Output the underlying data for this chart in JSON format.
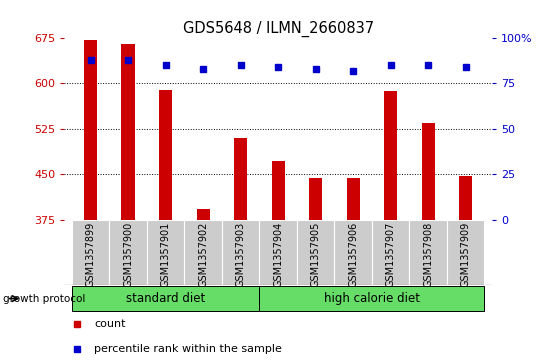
{
  "title": "GDS5648 / ILMN_2660837",
  "samples": [
    "GSM1357899",
    "GSM1357900",
    "GSM1357901",
    "GSM1357902",
    "GSM1357903",
    "GSM1357904",
    "GSM1357905",
    "GSM1357906",
    "GSM1357907",
    "GSM1357908",
    "GSM1357909"
  ],
  "bar_values": [
    672,
    665,
    590,
    393,
    510,
    472,
    443,
    443,
    587,
    535,
    447
  ],
  "percentile_values": [
    88,
    88,
    85,
    83,
    85,
    84,
    83,
    82,
    85,
    85,
    84
  ],
  "bar_color": "#cc0000",
  "percentile_color": "#0000cc",
  "ymin": 375,
  "ymax": 675,
  "y_ticks": [
    375,
    450,
    525,
    600,
    675
  ],
  "y_right_ticks": [
    0,
    25,
    50,
    75,
    100
  ],
  "y_right_labels": [
    "0",
    "25",
    "50",
    "75",
    "100%"
  ],
  "grid_values": [
    600,
    525,
    450
  ],
  "standard_diet_indices": [
    0,
    1,
    2,
    3,
    4
  ],
  "high_calorie_indices": [
    5,
    6,
    7,
    8,
    9,
    10
  ],
  "group_label_0": "standard diet",
  "group_label_1": "high calorie diet",
  "group_color": "#66dd66",
  "xlabel_area_color": "#cccccc",
  "protocol_label": "growth protocol",
  "legend_count_label": "count",
  "legend_pct_label": "percentile rank within the sample",
  "bar_width": 0.35,
  "figsize": [
    5.59,
    3.63
  ],
  "dpi": 100
}
